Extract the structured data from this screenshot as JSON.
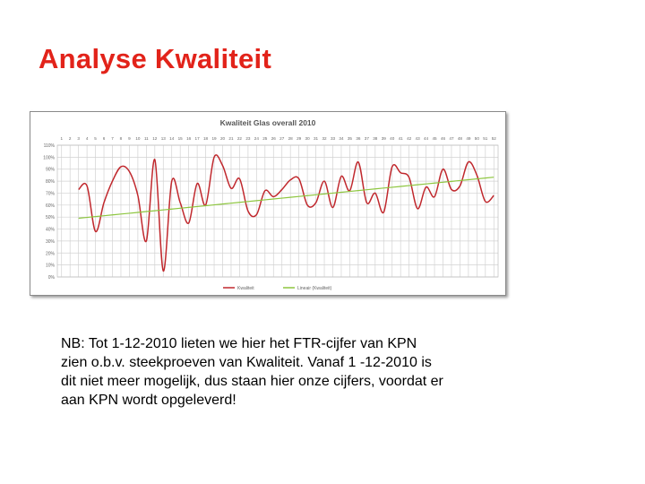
{
  "slide": {
    "title": "Analyse Kwaliteit",
    "note": "NB: Tot 1-12-2010 lieten we hier het FTR-cijfer van KPN zien o.b.v. steekproeven van Kwaliteit. Vanaf 1 -12-2010 is dit niet meer mogelijk, dus staan hier onze cijfers, voordat er aan KPN wordt opgeleverd!",
    "title_color": "#e2231a"
  },
  "chart_data": {
    "type": "line",
    "title": "Kwaliteit Glas overall 2010",
    "xlabel": "",
    "ylabel": "",
    "x": [
      1,
      2,
      3,
      4,
      5,
      6,
      7,
      8,
      9,
      10,
      11,
      12,
      13,
      14,
      15,
      16,
      17,
      18,
      19,
      20,
      21,
      22,
      23,
      24,
      25,
      26,
      27,
      28,
      29,
      30,
      31,
      32,
      33,
      34,
      35,
      36,
      37,
      38,
      39,
      40,
      41,
      42,
      43,
      44,
      45,
      46,
      47,
      48,
      49,
      50,
      51,
      52
    ],
    "ylim": [
      0,
      110
    ],
    "yticks": [
      0,
      10,
      20,
      30,
      40,
      50,
      60,
      70,
      80,
      90,
      100,
      110
    ],
    "ytick_labels": [
      "0%",
      "10%",
      "20%",
      "30%",
      "40%",
      "50%",
      "60%",
      "70%",
      "80%",
      "90%",
      "100%",
      "110%"
    ],
    "grid": true,
    "legend": "bottom",
    "series": [
      {
        "name": "Kwaliteit",
        "color": "#c0282d",
        "values": [
          null,
          null,
          73,
          76,
          38,
          62,
          80,
          92,
          88,
          68,
          30,
          98,
          5,
          80,
          62,
          45,
          78,
          60,
          100,
          93,
          74,
          82,
          55,
          52,
          72,
          67,
          73,
          81,
          82,
          60,
          62,
          80,
          58,
          84,
          72,
          96,
          62,
          70,
          54,
          92,
          87,
          83,
          57,
          75,
          67,
          90,
          73,
          76,
          96,
          85,
          63,
          68
        ]
      },
      {
        "name": "Lineair (Kwaliteit)",
        "color": "#8dc63f",
        "values": [
          null,
          null,
          49,
          49.7,
          50.4,
          51.1,
          51.8,
          52.5,
          53.2,
          53.9,
          54.6,
          55.3,
          56,
          56.7,
          57.4,
          58.1,
          58.8,
          59.5,
          60.2,
          60.9,
          61.6,
          62.3,
          63,
          63.7,
          64.4,
          65.1,
          65.8,
          66.5,
          67.2,
          67.9,
          68.6,
          69.3,
          70,
          70.7,
          71.4,
          72.1,
          72.8,
          73.5,
          74.2,
          74.9,
          75.6,
          76.3,
          77,
          77.7,
          78.4,
          79.1,
          79.8,
          80.5,
          81.2,
          81.9,
          82.6,
          83.3
        ]
      }
    ]
  }
}
